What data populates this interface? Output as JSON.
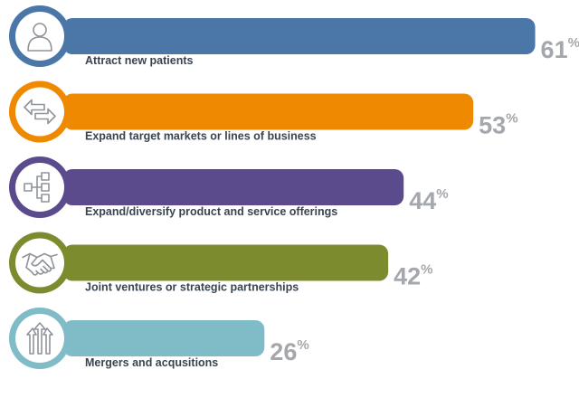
{
  "chart_data": {
    "type": "bar",
    "orientation": "horizontal",
    "categories": [
      "Attract new patients",
      "Expand target markets or lines of business",
      "Expand/diversify product and service offerings",
      "Joint ventures or strategic partnerships",
      "Mergers and acqusitions"
    ],
    "values": [
      61,
      53,
      44,
      42,
      26
    ],
    "value_labels": [
      "61",
      "53",
      "44",
      "42",
      "26"
    ],
    "value_suffix": "%",
    "colors": [
      "#4a76a8",
      "#ef8a00",
      "#5b4a8c",
      "#7d8b2f",
      "#7fbcc8"
    ],
    "icons": [
      "person-icon",
      "arrows-left-right-icon",
      "hierarchy-icon",
      "handshake-icon",
      "merge-arrows-icon"
    ],
    "xlim": [
      0,
      100
    ],
    "grid": false,
    "legend": "none"
  }
}
